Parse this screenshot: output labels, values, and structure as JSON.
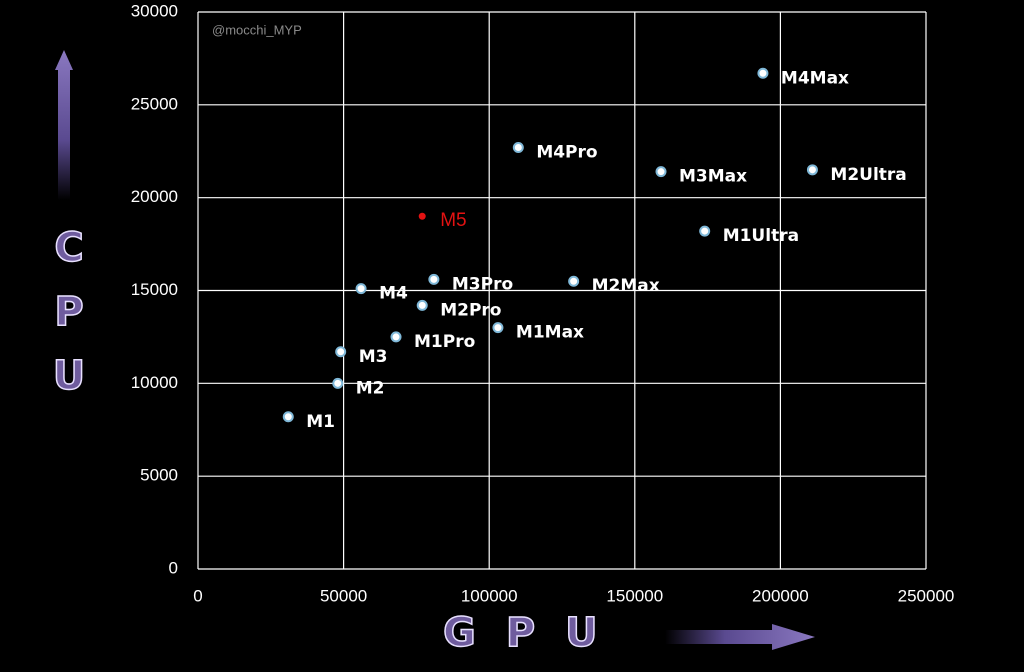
{
  "chart_data": {
    "type": "scatter",
    "watermark": "@mocchi_MYP",
    "x_label": "GPU",
    "y_label": "CPU",
    "xlim": [
      0,
      250000
    ],
    "xticks": [
      0,
      50000,
      100000,
      150000,
      200000,
      250000
    ],
    "ylim": [
      0,
      30000
    ],
    "yticks": [
      0,
      5000,
      10000,
      15000,
      20000,
      25000,
      30000
    ],
    "grid": true,
    "series": [
      {
        "name": "M1",
        "color": "#ffffff",
        "x": [
          31000
        ],
        "values": [
          8200
        ]
      },
      {
        "name": "M2",
        "color": "#ffffff",
        "x": [
          48000
        ],
        "values": [
          10000
        ]
      },
      {
        "name": "M3",
        "color": "#ffffff",
        "x": [
          49000
        ],
        "values": [
          11700
        ]
      },
      {
        "name": "M4",
        "color": "#ffffff",
        "x": [
          56000
        ],
        "values": [
          15100
        ]
      },
      {
        "name": "M1Pro",
        "color": "#ffffff",
        "x": [
          68000
        ],
        "values": [
          12500
        ]
      },
      {
        "name": "M2Pro",
        "color": "#ffffff",
        "x": [
          77000
        ],
        "values": [
          14200
        ]
      },
      {
        "name": "M3Pro",
        "color": "#ffffff",
        "x": [
          81000
        ],
        "values": [
          15600
        ]
      },
      {
        "name": "M1Max",
        "color": "#ffffff",
        "x": [
          103000
        ],
        "values": [
          13000
        ]
      },
      {
        "name": "M2Max",
        "color": "#ffffff",
        "x": [
          129000
        ],
        "values": [
          15500
        ]
      },
      {
        "name": "M4Pro",
        "color": "#ffffff",
        "x": [
          110000
        ],
        "values": [
          22700
        ]
      },
      {
        "name": "M3Max",
        "color": "#ffffff",
        "x": [
          159000
        ],
        "values": [
          21400
        ]
      },
      {
        "name": "M1Ultra",
        "color": "#ffffff",
        "x": [
          174000
        ],
        "values": [
          18200
        ]
      },
      {
        "name": "M4Max",
        "color": "#ffffff",
        "x": [
          194000
        ],
        "values": [
          26700
        ]
      },
      {
        "name": "M2Ultra",
        "color": "#ffffff",
        "x": [
          211000
        ],
        "values": [
          21500
        ]
      },
      {
        "name": "M5",
        "color": "#e31212",
        "x": [
          77000
        ],
        "values": [
          19000
        ]
      }
    ]
  }
}
